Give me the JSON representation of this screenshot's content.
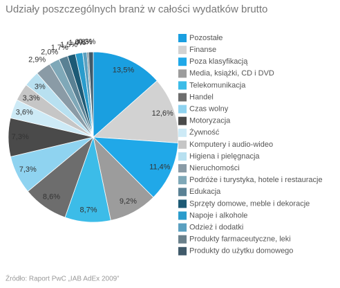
{
  "chart_data": {
    "type": "pie",
    "title": "Udziały poszczególnych branż w całości wydatków brutto",
    "source": "Źródło: Raport PwC „IAB AdEx 2009”",
    "categories": [
      "Pozostałe",
      "Finanse",
      "Poza klasyfikacją",
      "Media, książki, CD i DVD",
      "Telekomunikacja",
      "Handel",
      "Czas wolny",
      "Motoryzacja",
      "Żywność",
      "Komputery i audio-wideo",
      "Higiena i pielęgnacja",
      "Nieruchomości",
      "Podróże i turystyka, hotele i restauracje",
      "Edukacja",
      "Sprzęty domowe, meble i dekoracje",
      "Napoje i alkohole",
      "Odzież i dodatki",
      "Produkty farmaceutyczne, leki",
      "Produkty do użytku domowego"
    ],
    "values": [
      13.5,
      12.6,
      11.4,
      9.2,
      8.7,
      8.6,
      7.3,
      7.3,
      3.6,
      3.3,
      3,
      2.9,
      2.0,
      1.7,
      1.5,
      1.4,
      0.8,
      0.3,
      0.9
    ],
    "value_labels": [
      "13,5%",
      "12,6%",
      "11,4%",
      "9,2%",
      "8,7%",
      "8,6%",
      "7,3%",
      "7,3%",
      "3,6%",
      "3,3%",
      "3%",
      "2,9%",
      "2,0%",
      "1,7%",
      "1,5%",
      "1,4%",
      "0,8%",
      "0,3%",
      null
    ],
    "colors": [
      "#1a9fe0",
      "#d2d2d2",
      "#20a8e8",
      "#9c9c9c",
      "#3cbce8",
      "#6d6d6d",
      "#8fd3f0",
      "#4a4a4a",
      "#cdeaf6",
      "#c6c6c6",
      "#b8e0f0",
      "#8a9ba6",
      "#7fa8b8",
      "#5a8194",
      "#1d5a75",
      "#2a9ccc",
      "#5aa0c0",
      "#6a808b",
      "#405a6a"
    ]
  }
}
